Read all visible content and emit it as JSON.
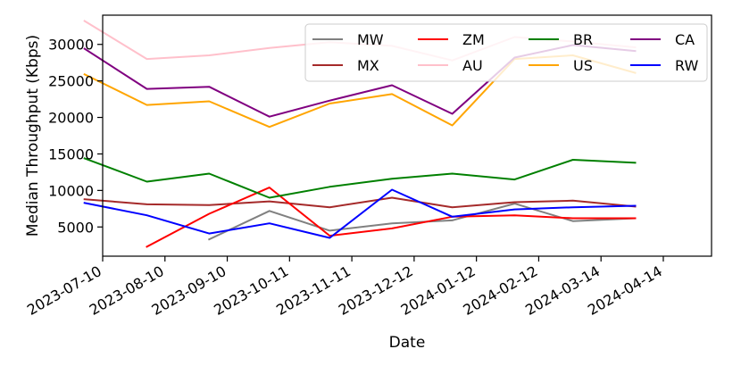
{
  "chart_data": {
    "type": "line",
    "xlabel": "Date",
    "ylabel": "Median Throughput (Kbps)",
    "x_ticks": [
      "2023-07-10",
      "2023-08-10",
      "2023-09-10",
      "2023-10-11",
      "2023-11-11",
      "2023-12-12",
      "2024-01-12",
      "2024-02-12",
      "2024-03-14",
      "2024-04-14"
    ],
    "y_ticks": [
      5000,
      10000,
      15000,
      20000,
      25000,
      30000
    ],
    "ylim": [
      1000,
      34000
    ],
    "x_range": [
      "2023-07-10",
      "2024-05-08"
    ],
    "grid": false,
    "legend_position": "top-right",
    "series": [
      {
        "name": "MW",
        "color": "#808080",
        "points": [
          [
            "2023-09-01",
            3300
          ],
          [
            "2023-10-01",
            7200
          ],
          [
            "2023-10-31",
            4500
          ],
          [
            "2023-12-01",
            5500
          ],
          [
            "2023-12-31",
            5900
          ],
          [
            "2024-01-31",
            8200
          ],
          [
            "2024-02-29",
            5800
          ],
          [
            "2024-03-31",
            6200
          ]
        ]
      },
      {
        "name": "MX",
        "color": "#a52a2a",
        "points": [
          [
            "2023-07-01",
            8800
          ],
          [
            "2023-08-01",
            8100
          ],
          [
            "2023-09-01",
            8000
          ],
          [
            "2023-10-01",
            8500
          ],
          [
            "2023-10-31",
            7700
          ],
          [
            "2023-12-01",
            9000
          ],
          [
            "2023-12-31",
            7700
          ],
          [
            "2024-01-31",
            8400
          ],
          [
            "2024-02-29",
            8600
          ],
          [
            "2024-03-31",
            7800
          ]
        ]
      },
      {
        "name": "ZM",
        "color": "#ff0000",
        "points": [
          [
            "2023-08-01",
            2300
          ],
          [
            "2023-09-01",
            6800
          ],
          [
            "2023-10-01",
            10400
          ],
          [
            "2023-10-31",
            3800
          ],
          [
            "2023-12-01",
            4800
          ],
          [
            "2023-12-31",
            6400
          ],
          [
            "2024-01-31",
            6600
          ],
          [
            "2024-02-29",
            6200
          ],
          [
            "2024-03-31",
            6200
          ]
        ]
      },
      {
        "name": "AU",
        "color": "#ffc0cb",
        "points": [
          [
            "2023-07-01",
            33200
          ],
          [
            "2023-08-01",
            28000
          ],
          [
            "2023-09-01",
            28500
          ],
          [
            "2023-10-01",
            29500
          ],
          [
            "2023-10-31",
            30300
          ],
          [
            "2023-12-01",
            29800
          ],
          [
            "2023-12-31",
            27800
          ],
          [
            "2024-01-31",
            31000
          ],
          [
            "2024-02-29",
            30400
          ],
          [
            "2024-03-31",
            29600
          ]
        ]
      },
      {
        "name": "BR",
        "color": "#008000",
        "points": [
          [
            "2023-07-01",
            14400
          ],
          [
            "2023-08-01",
            11200
          ],
          [
            "2023-09-01",
            12300
          ],
          [
            "2023-10-01",
            9000
          ],
          [
            "2023-10-31",
            10500
          ],
          [
            "2023-12-01",
            11600
          ],
          [
            "2023-12-31",
            12300
          ],
          [
            "2024-01-31",
            11500
          ],
          [
            "2024-02-29",
            14200
          ],
          [
            "2024-03-31",
            13800
          ]
        ]
      },
      {
        "name": "US",
        "color": "#ffa500",
        "points": [
          [
            "2023-07-01",
            25900
          ],
          [
            "2023-08-01",
            21700
          ],
          [
            "2023-09-01",
            22200
          ],
          [
            "2023-10-01",
            18700
          ],
          [
            "2023-10-31",
            21900
          ],
          [
            "2023-12-01",
            23200
          ],
          [
            "2023-12-31",
            18900
          ],
          [
            "2024-01-31",
            28000
          ],
          [
            "2024-02-29",
            28500
          ],
          [
            "2024-03-31",
            26100
          ]
        ]
      },
      {
        "name": "CA",
        "color": "#800080",
        "points": [
          [
            "2023-07-01",
            29400
          ],
          [
            "2023-08-01",
            23900
          ],
          [
            "2023-09-01",
            24200
          ],
          [
            "2023-10-01",
            20100
          ],
          [
            "2023-10-31",
            22300
          ],
          [
            "2023-12-01",
            24400
          ],
          [
            "2023-12-31",
            20500
          ],
          [
            "2024-01-31",
            28200
          ],
          [
            "2024-02-29",
            29900
          ],
          [
            "2024-03-31",
            29100
          ]
        ]
      },
      {
        "name": "RW",
        "color": "#0000ff",
        "points": [
          [
            "2023-07-01",
            8300
          ],
          [
            "2023-08-01",
            6600
          ],
          [
            "2023-09-01",
            4100
          ],
          [
            "2023-10-01",
            5500
          ],
          [
            "2023-10-31",
            3500
          ],
          [
            "2023-12-01",
            10100
          ],
          [
            "2023-12-31",
            6400
          ],
          [
            "2024-01-31",
            7400
          ],
          [
            "2024-02-29",
            7700
          ],
          [
            "2024-03-31",
            7900
          ]
        ]
      }
    ],
    "legend_order": [
      "MW",
      "ZM",
      "BR",
      "CA",
      "MX",
      "AU",
      "US",
      "RW"
    ]
  }
}
